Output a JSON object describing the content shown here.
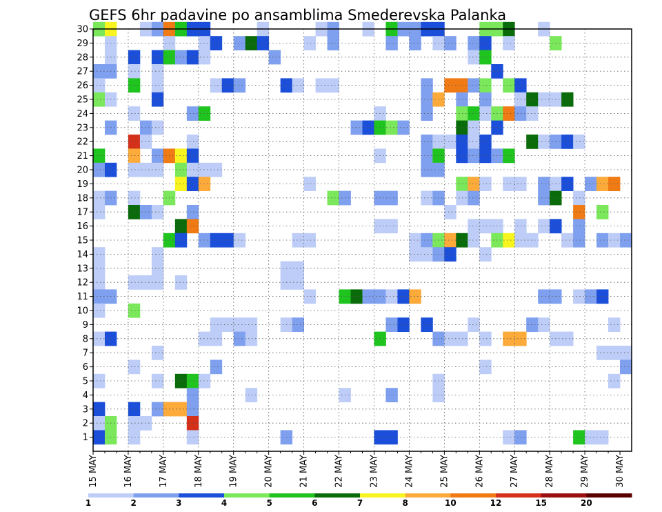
{
  "chart_data": {
    "type": "heatmap",
    "title": "GEFS 6hr padavine po ansamblima Smederevska Palanka",
    "x_tick_labels": [
      "15 MAY",
      "16 MAY",
      "17 MAY",
      "18 MAY",
      "19 MAY",
      "20 MAY",
      "21 MAY",
      "22 MAY",
      "23 MAY",
      "24 MAY",
      "25 MAY",
      "26 MAY",
      "27 MAY",
      "28 MAY",
      "29 MAY",
      "30 MAY"
    ],
    "y_tick_labels": [
      "1",
      "2",
      "3",
      "4",
      "5",
      "6",
      "7",
      "8",
      "9",
      "10",
      "11",
      "12",
      "13",
      "14",
      "15",
      "16",
      "17",
      "18",
      "19",
      "20",
      "21",
      "22",
      "23",
      "24",
      "25",
      "26",
      "27",
      "28",
      "29",
      "30"
    ],
    "legend_labels": [
      "1",
      "2",
      "3",
      "4",
      "5",
      "6",
      "7",
      "8",
      "10",
      "12",
      "15",
      "20"
    ],
    "legend_colors": [
      "#bdcdf7",
      "#7fa0ee",
      "#1c4fd9",
      "#7ae85a",
      "#1fc41f",
      "#0a6b0a",
      "#f7f41f",
      "#fcaa3a",
      "#f07a14",
      "#d4301a",
      "#9c0f0f",
      "#5a0000"
    ],
    "grid": true,
    "cells": [
      [
        30,
        1,
        4
      ],
      [
        30,
        2,
        7
      ],
      [
        30,
        5,
        1
      ],
      [
        30,
        6,
        2
      ],
      [
        30,
        7,
        9
      ],
      [
        30,
        8,
        5
      ],
      [
        30,
        9,
        3
      ],
      [
        30,
        10,
        3
      ],
      [
        30,
        15,
        1
      ],
      [
        30,
        20,
        1
      ],
      [
        30,
        21,
        2
      ],
      [
        30,
        24,
        1
      ],
      [
        30,
        26,
        5
      ],
      [
        30,
        27,
        2
      ],
      [
        30,
        28,
        2
      ],
      [
        30,
        29,
        3
      ],
      [
        30,
        30,
        3
      ],
      [
        30,
        34,
        4
      ],
      [
        30,
        35,
        4
      ],
      [
        30,
        36,
        6
      ],
      [
        30,
        39,
        1
      ],
      [
        29,
        2,
        1
      ],
      [
        29,
        7,
        1
      ],
      [
        29,
        10,
        1
      ],
      [
        29,
        11,
        3
      ],
      [
        29,
        13,
        2
      ],
      [
        29,
        14,
        6
      ],
      [
        29,
        15,
        3
      ],
      [
        29,
        19,
        1
      ],
      [
        29,
        21,
        2
      ],
      [
        29,
        26,
        2
      ],
      [
        29,
        28,
        2
      ],
      [
        29,
        30,
        1
      ],
      [
        29,
        31,
        2
      ],
      [
        29,
        33,
        2
      ],
      [
        29,
        34,
        3
      ],
      [
        29,
        36,
        1
      ],
      [
        29,
        40,
        4
      ],
      [
        28,
        2,
        1
      ],
      [
        28,
        4,
        3
      ],
      [
        28,
        6,
        3
      ],
      [
        28,
        7,
        5
      ],
      [
        28,
        8,
        2
      ],
      [
        28,
        9,
        3
      ],
      [
        28,
        10,
        1
      ],
      [
        28,
        16,
        2
      ],
      [
        28,
        33,
        1
      ],
      [
        28,
        34,
        5
      ],
      [
        27,
        1,
        2
      ],
      [
        27,
        2,
        2
      ],
      [
        27,
        4,
        1
      ],
      [
        27,
        6,
        1
      ],
      [
        27,
        35,
        3
      ],
      [
        26,
        1,
        1
      ],
      [
        26,
        4,
        5
      ],
      [
        26,
        6,
        1
      ],
      [
        26,
        11,
        1
      ],
      [
        26,
        12,
        3
      ],
      [
        26,
        13,
        2
      ],
      [
        26,
        17,
        3
      ],
      [
        26,
        18,
        1
      ],
      [
        26,
        20,
        1
      ],
      [
        26,
        21,
        1
      ],
      [
        26,
        29,
        2
      ],
      [
        26,
        31,
        9
      ],
      [
        26,
        32,
        9
      ],
      [
        26,
        33,
        2
      ],
      [
        26,
        34,
        4
      ],
      [
        26,
        36,
        4
      ],
      [
        26,
        37,
        3
      ],
      [
        25,
        1,
        4
      ],
      [
        25,
        2,
        1
      ],
      [
        25,
        6,
        3
      ],
      [
        25,
        29,
        2
      ],
      [
        25,
        30,
        8
      ],
      [
        25,
        32,
        2
      ],
      [
        25,
        34,
        2
      ],
      [
        25,
        37,
        1
      ],
      [
        25,
        38,
        6
      ],
      [
        25,
        39,
        1
      ],
      [
        25,
        40,
        1
      ],
      [
        25,
        41,
        6
      ],
      [
        24,
        4,
        1
      ],
      [
        24,
        9,
        2
      ],
      [
        24,
        10,
        5
      ],
      [
        24,
        25,
        1
      ],
      [
        24,
        29,
        2
      ],
      [
        24,
        32,
        4
      ],
      [
        24,
        33,
        5
      ],
      [
        24,
        34,
        1
      ],
      [
        24,
        35,
        4
      ],
      [
        24,
        36,
        9
      ],
      [
        24,
        37,
        2
      ],
      [
        24,
        38,
        1
      ],
      [
        23,
        2,
        2
      ],
      [
        23,
        5,
        2
      ],
      [
        23,
        6,
        1
      ],
      [
        23,
        23,
        2
      ],
      [
        23,
        24,
        3
      ],
      [
        23,
        25,
        5
      ],
      [
        23,
        26,
        4
      ],
      [
        23,
        27,
        2
      ],
      [
        23,
        32,
        6
      ],
      [
        23,
        33,
        1
      ],
      [
        23,
        35,
        3
      ],
      [
        22,
        4,
        10
      ],
      [
        22,
        5,
        1
      ],
      [
        22,
        9,
        1
      ],
      [
        22,
        29,
        2
      ],
      [
        22,
        30,
        1
      ],
      [
        22,
        31,
        1
      ],
      [
        22,
        32,
        3
      ],
      [
        22,
        33,
        1
      ],
      [
        22,
        34,
        3
      ],
      [
        22,
        38,
        6
      ],
      [
        22,
        39,
        1
      ],
      [
        22,
        40,
        2
      ],
      [
        22,
        41,
        3
      ],
      [
        22,
        42,
        1
      ],
      [
        21,
        1,
        5
      ],
      [
        21,
        4,
        8
      ],
      [
        21,
        6,
        2
      ],
      [
        21,
        7,
        9
      ],
      [
        21,
        8,
        7
      ],
      [
        21,
        9,
        3
      ],
      [
        21,
        25,
        1
      ],
      [
        21,
        29,
        2
      ],
      [
        21,
        30,
        5
      ],
      [
        21,
        32,
        3
      ],
      [
        21,
        33,
        2
      ],
      [
        21,
        34,
        3
      ],
      [
        21,
        35,
        2
      ],
      [
        21,
        36,
        5
      ],
      [
        20,
        1,
        2
      ],
      [
        20,
        2,
        3
      ],
      [
        20,
        4,
        1
      ],
      [
        20,
        5,
        1
      ],
      [
        20,
        6,
        1
      ],
      [
        20,
        8,
        4
      ],
      [
        20,
        9,
        1
      ],
      [
        20,
        10,
        1
      ],
      [
        20,
        11,
        1
      ],
      [
        20,
        29,
        2
      ],
      [
        20,
        30,
        2
      ],
      [
        19,
        8,
        7
      ],
      [
        19,
        9,
        3
      ],
      [
        19,
        10,
        8
      ],
      [
        19,
        19,
        1
      ],
      [
        19,
        32,
        4
      ],
      [
        19,
        33,
        8
      ],
      [
        19,
        34,
        1
      ],
      [
        19,
        36,
        1
      ],
      [
        19,
        37,
        1
      ],
      [
        19,
        39,
        2
      ],
      [
        19,
        40,
        1
      ],
      [
        19,
        41,
        3
      ],
      [
        19,
        43,
        2
      ],
      [
        19,
        44,
        8
      ],
      [
        19,
        45,
        9
      ],
      [
        18,
        1,
        1
      ],
      [
        18,
        2,
        2
      ],
      [
        18,
        4,
        1
      ],
      [
        18,
        7,
        4
      ],
      [
        18,
        21,
        4
      ],
      [
        18,
        22,
        2
      ],
      [
        18,
        25,
        2
      ],
      [
        18,
        26,
        2
      ],
      [
        18,
        29,
        1
      ],
      [
        18,
        30,
        2
      ],
      [
        18,
        32,
        1
      ],
      [
        18,
        33,
        2
      ],
      [
        18,
        39,
        2
      ],
      [
        18,
        40,
        6
      ],
      [
        18,
        42,
        1
      ],
      [
        17,
        1,
        1
      ],
      [
        17,
        4,
        6
      ],
      [
        17,
        5,
        2
      ],
      [
        17,
        6,
        1
      ],
      [
        17,
        9,
        2
      ],
      [
        17,
        31,
        1
      ],
      [
        17,
        42,
        9
      ],
      [
        17,
        44,
        4
      ],
      [
        16,
        8,
        6
      ],
      [
        16,
        9,
        9
      ],
      [
        16,
        25,
        1
      ],
      [
        16,
        26,
        1
      ],
      [
        16,
        33,
        1
      ],
      [
        16,
        34,
        1
      ],
      [
        16,
        35,
        1
      ],
      [
        16,
        37,
        1
      ],
      [
        16,
        39,
        1
      ],
      [
        16,
        40,
        3
      ],
      [
        16,
        42,
        2
      ],
      [
        15,
        7,
        5
      ],
      [
        15,
        8,
        3
      ],
      [
        15,
        10,
        2
      ],
      [
        15,
        11,
        3
      ],
      [
        15,
        12,
        3
      ],
      [
        15,
        13,
        1
      ],
      [
        15,
        18,
        1
      ],
      [
        15,
        19,
        1
      ],
      [
        15,
        28,
        1
      ],
      [
        15,
        29,
        2
      ],
      [
        15,
        30,
        4
      ],
      [
        15,
        31,
        8
      ],
      [
        15,
        32,
        6
      ],
      [
        15,
        33,
        1
      ],
      [
        15,
        35,
        4
      ],
      [
        15,
        36,
        7
      ],
      [
        15,
        37,
        1
      ],
      [
        15,
        38,
        1
      ],
      [
        15,
        41,
        1
      ],
      [
        15,
        42,
        2
      ],
      [
        15,
        44,
        2
      ],
      [
        15,
        45,
        1
      ],
      [
        15,
        46,
        2
      ],
      [
        14,
        1,
        1
      ],
      [
        14,
        6,
        1
      ],
      [
        14,
        28,
        1
      ],
      [
        14,
        29,
        1
      ],
      [
        14,
        30,
        2
      ],
      [
        14,
        31,
        3
      ],
      [
        14,
        34,
        1
      ],
      [
        13,
        1,
        1
      ],
      [
        13,
        6,
        1
      ],
      [
        13,
        17,
        1
      ],
      [
        13,
        18,
        1
      ],
      [
        12,
        1,
        1
      ],
      [
        12,
        4,
        1
      ],
      [
        12,
        5,
        1
      ],
      [
        12,
        6,
        1
      ],
      [
        12,
        8,
        1
      ],
      [
        12,
        17,
        1
      ],
      [
        12,
        18,
        1
      ],
      [
        11,
        1,
        2
      ],
      [
        11,
        2,
        2
      ],
      [
        11,
        19,
        1
      ],
      [
        11,
        22,
        5
      ],
      [
        11,
        23,
        6
      ],
      [
        11,
        24,
        2
      ],
      [
        11,
        25,
        2
      ],
      [
        11,
        26,
        1
      ],
      [
        11,
        27,
        3
      ],
      [
        11,
        28,
        8
      ],
      [
        11,
        39,
        2
      ],
      [
        11,
        40,
        2
      ],
      [
        11,
        42,
        1
      ],
      [
        11,
        43,
        2
      ],
      [
        11,
        44,
        3
      ],
      [
        10,
        1,
        1
      ],
      [
        10,
        4,
        4
      ],
      [
        9,
        11,
        1
      ],
      [
        9,
        12,
        1
      ],
      [
        9,
        13,
        1
      ],
      [
        9,
        14,
        1
      ],
      [
        9,
        17,
        1
      ],
      [
        9,
        18,
        2
      ],
      [
        9,
        26,
        2
      ],
      [
        9,
        27,
        3
      ],
      [
        9,
        29,
        3
      ],
      [
        9,
        33,
        1
      ],
      [
        9,
        38,
        2
      ],
      [
        9,
        39,
        1
      ],
      [
        9,
        45,
        1
      ],
      [
        8,
        1,
        1
      ],
      [
        8,
        2,
        3
      ],
      [
        8,
        10,
        1
      ],
      [
        8,
        11,
        1
      ],
      [
        8,
        13,
        2
      ],
      [
        8,
        14,
        1
      ],
      [
        8,
        25,
        5
      ],
      [
        8,
        30,
        2
      ],
      [
        8,
        31,
        1
      ],
      [
        8,
        32,
        1
      ],
      [
        8,
        34,
        1
      ],
      [
        8,
        36,
        8
      ],
      [
        8,
        37,
        8
      ],
      [
        8,
        40,
        1
      ],
      [
        8,
        41,
        1
      ],
      [
        7,
        6,
        1
      ],
      [
        7,
        44,
        1
      ],
      [
        7,
        45,
        1
      ],
      [
        7,
        46,
        1
      ],
      [
        6,
        4,
        1
      ],
      [
        6,
        11,
        2
      ],
      [
        6,
        34,
        1
      ],
      [
        6,
        46,
        2
      ],
      [
        5,
        1,
        1
      ],
      [
        5,
        6,
        1
      ],
      [
        5,
        8,
        6
      ],
      [
        5,
        9,
        5
      ],
      [
        5,
        10,
        1
      ],
      [
        5,
        30,
        1
      ],
      [
        5,
        45,
        1
      ],
      [
        4,
        9,
        2
      ],
      [
        4,
        14,
        1
      ],
      [
        4,
        22,
        1
      ],
      [
        4,
        26,
        2
      ],
      [
        4,
        30,
        1
      ],
      [
        3,
        1,
        3
      ],
      [
        3,
        4,
        3
      ],
      [
        3,
        6,
        2
      ],
      [
        3,
        7,
        8
      ],
      [
        3,
        8,
        8
      ],
      [
        3,
        9,
        2
      ],
      [
        2,
        1,
        1
      ],
      [
        2,
        2,
        4
      ],
      [
        2,
        4,
        1
      ],
      [
        2,
        5,
        1
      ],
      [
        2,
        9,
        10
      ],
      [
        1,
        1,
        3
      ],
      [
        1,
        2,
        4
      ],
      [
        1,
        4,
        1
      ],
      [
        1,
        9,
        1
      ],
      [
        1,
        17,
        2
      ],
      [
        1,
        25,
        3
      ],
      [
        1,
        26,
        3
      ],
      [
        1,
        36,
        1
      ],
      [
        1,
        37,
        2
      ],
      [
        1,
        42,
        5
      ],
      [
        1,
        43,
        1
      ],
      [
        1,
        44,
        1
      ]
    ]
  }
}
